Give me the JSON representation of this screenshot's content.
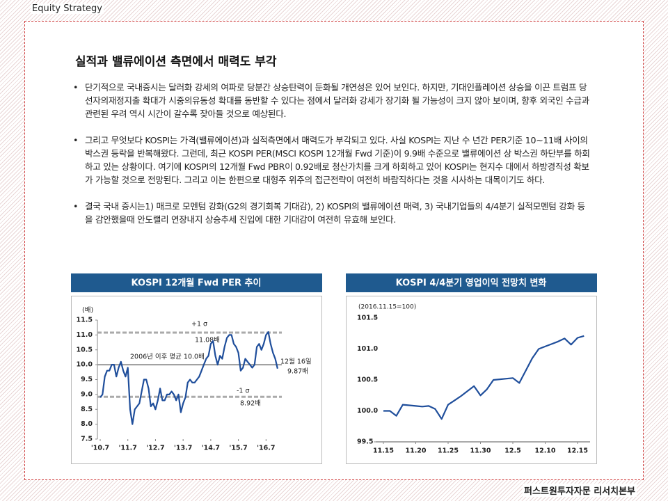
{
  "header": "Equity Strategy",
  "title": "실적과 밸류에이션 측면에서 매력도 부각",
  "bullets": [
    "단기적으로 국내증시는 달러화 강세의 여파로 당분간 상승탄력이 둔화될 개연성은 있어 보인다. 하지만, 기대인플레이션 상승을 이끈 트럼프 당선자의재정지출 확대가 시중의유동성 확대를 동반할 수 있다는 점에서 달러화 강세가 장기화 될 가능성이 크지 않아 보이며, 향후 외국인 수급과 관련된 우려 역시 시간이 갈수록 잦아들 것으로 예상된다.",
    "그리고 무엇보다 KOSPI는 가격(밸류에이션)과 실적측면에서 매력도가 부각되고 있다. 사실 KOSPI는 지난 수 년간 PER기준 10~11배 사이의 박스권 등락을 반복해왔다. 그런데, 최근 KOSPI PER(MSCI KOSPI 12개월 Fwd 기준)이 9.9배 수준으로 밸류에이션 상 박스권 하단부를 하회하고 있는 상황이다. 여기에 KOSPI의 12개월 Fwd PBR이 0.92배로 청산가치를 크게 하회하고 있어 KOSPI는 현지수 대에서 하방경직성 확보가 가능할 것으로 전망된다. 그리고 이는 한편으로 대형주 위주의 접근전략이 여전히 바람직하다는 것을 시사하는 대목이기도 하다.",
    "결국 국내 증시는1) 매크로 모멘텀 강화(G2의 경기회복 기대감), 2) KOSPI의 밸류에이션 매력, 3) 국내기업들의 4/4분기 실적모멘텀 강화 등을 감안했을때 안도랠리 연장내지 상승추세 진입에 대한 기대감이 여전히 유효해 보인다."
  ],
  "chart_data": [
    {
      "type": "line",
      "title": "KOSPI 12개월 Fwd PER 추이",
      "ylabel": "(배)",
      "color": "#1f4e9b",
      "categories": [
        "'10.7",
        null,
        null,
        null,
        null,
        null,
        null,
        null,
        null,
        null,
        null,
        null,
        "'11.7",
        null,
        null,
        null,
        null,
        null,
        null,
        null,
        null,
        null,
        null,
        null,
        "'12.7",
        null,
        null,
        null,
        null,
        null,
        null,
        null,
        null,
        null,
        null,
        null,
        "'13.7",
        null,
        null,
        null,
        null,
        null,
        null,
        null,
        null,
        null,
        null,
        null,
        "'14.7",
        null,
        null,
        null,
        null,
        null,
        null,
        null,
        null,
        null,
        null,
        null,
        "'15.7",
        null,
        null,
        null,
        null,
        null,
        null,
        null,
        null,
        null,
        null,
        null,
        "'16.7",
        null,
        null,
        null,
        null,
        null
      ],
      "values": [
        8.9,
        9.0,
        9.6,
        9.8,
        9.8,
        10.0,
        10.0,
        9.6,
        9.9,
        10.1,
        9.8,
        9.6,
        9.9,
        8.5,
        8.0,
        8.5,
        8.6,
        8.7,
        9.1,
        9.5,
        9.5,
        9.2,
        8.6,
        8.7,
        8.5,
        8.8,
        9.2,
        8.8,
        8.8,
        9.0,
        9.0,
        9.1,
        9.0,
        8.8,
        9.0,
        8.4,
        8.7,
        8.9,
        9.4,
        9.5,
        9.4,
        9.4,
        9.5,
        9.6,
        9.8,
        10.0,
        10.2,
        10.3,
        10.7,
        10.8,
        10.3,
        10.0,
        10.3,
        10.2,
        10.6,
        10.9,
        11.0,
        11.0,
        10.7,
        10.6,
        10.4,
        9.8,
        9.9,
        10.2,
        10.1,
        10.0,
        9.9,
        10.0,
        10.6,
        10.7,
        10.5,
        10.7,
        11.0,
        11.1,
        10.7,
        10.4,
        10.2,
        9.87
      ],
      "ylim": [
        7.5,
        11.5
      ],
      "yticks": [
        7.5,
        {
          "value": 8,
          "label": "8.0"
        },
        8.5,
        {
          "value": 9,
          "label": "9.0"
        },
        9.5,
        {
          "value": 10,
          "label": "10.0"
        },
        10.5,
        {
          "value": 11,
          "label": "11.0"
        },
        11.5
      ],
      "reference_lines": [
        {
          "value": 11.08,
          "label": "+1 σ",
          "value_label": "11.08배",
          "style": "dashed"
        },
        {
          "value": 10.0,
          "label": "2006년 이후 평균 10.0배",
          "style": "solid"
        },
        {
          "value": 8.92,
          "label": "-1 σ",
          "value_label": "8.92배",
          "style": "dashed"
        }
      ],
      "annotations": [
        "12월 16일",
        "9.87배"
      ]
    },
    {
      "type": "line",
      "title": "KOSPI 4/4분기 영업이익 전망치 변화",
      "subtitle": "(2016.11.15=100)",
      "color": "#1f4e9b",
      "categories": [
        "11.15",
        null,
        null,
        null,
        null,
        "11.20",
        null,
        null,
        null,
        null,
        "11.25",
        null,
        null,
        null,
        null,
        "11.30",
        null,
        null,
        null,
        null,
        "12.5",
        null,
        null,
        null,
        null,
        "12.10",
        null,
        null,
        null,
        null,
        "12.15",
        null
      ],
      "values": [
        100.0,
        100.0,
        99.92,
        100.1,
        100.09,
        100.08,
        100.07,
        100.08,
        100.03,
        99.87,
        100.1,
        100.17,
        100.24,
        100.32,
        100.4,
        100.25,
        100.35,
        100.5,
        100.51,
        100.52,
        100.53,
        100.45,
        100.65,
        100.85,
        101.0,
        101.04,
        101.08,
        101.12,
        101.17,
        101.07,
        101.18,
        101.21
      ],
      "ylim": [
        99.5,
        101.5
      ],
      "yticks": [
        99.5,
        {
          "value": 100,
          "label": "100.0"
        },
        100.5,
        {
          "value": 101,
          "label": "101.0"
        },
        101.5
      ]
    }
  ],
  "footer": "퍼스트원투자자문 리서치본부"
}
